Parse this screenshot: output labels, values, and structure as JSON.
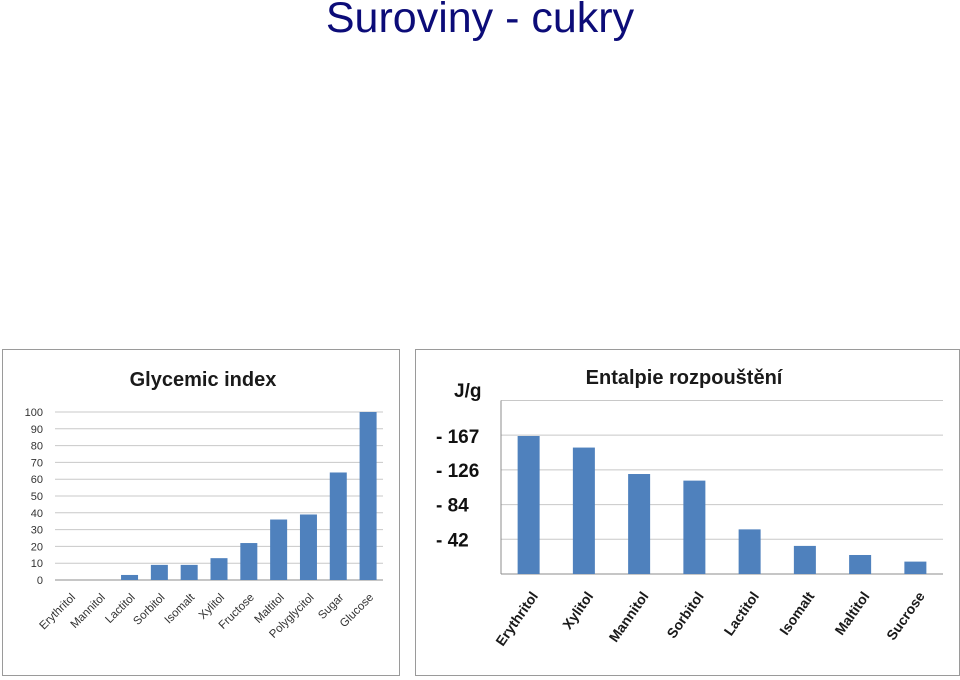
{
  "slide": {
    "title": "Suroviny - cukry"
  },
  "chart_data": [
    {
      "type": "bar",
      "title": "Glycemic index",
      "categories": [
        "Erythritol",
        "Mannitol",
        "Lactitol",
        "Sorbitol",
        "Isomalt",
        "Xylitol",
        "Fructose",
        "Maltitol",
        "Polyglycitol",
        "Sugar",
        "Glucose"
      ],
      "values": [
        0,
        0,
        3,
        9,
        9,
        13,
        22,
        36,
        39,
        64,
        100
      ],
      "ylim": [
        0,
        100
      ],
      "yticks": [
        "0",
        "10",
        "20",
        "30",
        "40",
        "50",
        "60",
        "70",
        "80",
        "90",
        "100"
      ],
      "grid": true,
      "color": "#4f81bd",
      "legend": "none"
    },
    {
      "type": "bar",
      "title": "Entalpie rozpouštění",
      "unit_label": "J/g",
      "categories": [
        "Erythritol",
        "Xylitol",
        "Mannitol",
        "Sorbitol",
        "Lactitol",
        "Isomalt",
        "Maltitol",
        "Sucrose"
      ],
      "values": [
        -167,
        -153,
        -121,
        -113,
        -54,
        -34,
        -23,
        -15
      ],
      "ylim": [
        0,
        -210
      ],
      "ytick_labels": [
        {
          "value": -167,
          "label": "- 167"
        },
        {
          "value": -126,
          "label": "- 126"
        },
        {
          "value": -84,
          "label": "-  84"
        },
        {
          "value": -42,
          "label": "-  42"
        }
      ],
      "grid": true,
      "color": "#4f81bd",
      "legend": "none"
    }
  ]
}
